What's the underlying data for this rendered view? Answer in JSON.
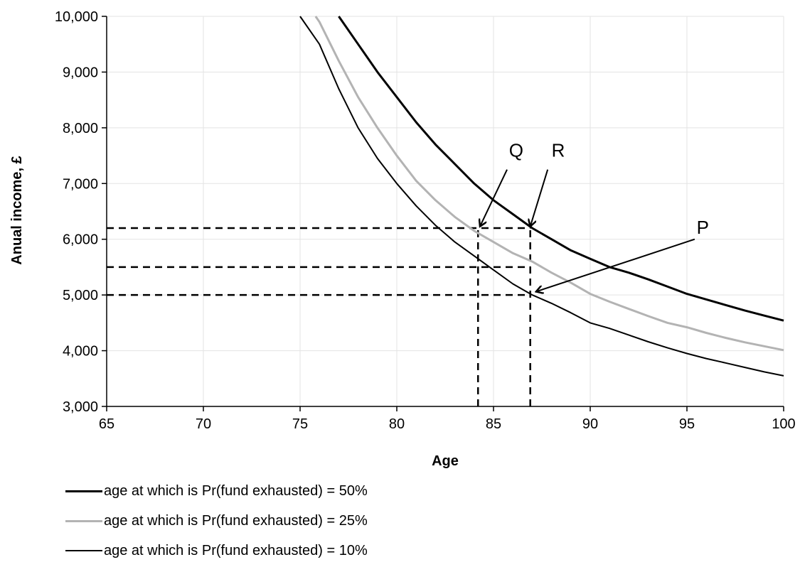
{
  "chart_data": {
    "type": "line",
    "xlabel": "Age",
    "ylabel": "Anual income, £",
    "xlim": [
      65,
      100
    ],
    "ylim": [
      3000,
      10000
    ],
    "xticks": [
      65,
      70,
      75,
      80,
      85,
      90,
      95,
      100
    ],
    "yticks": [
      3000,
      4000,
      5000,
      6000,
      7000,
      8000,
      9000,
      10000
    ],
    "xtick_labels": [
      "65",
      "70",
      "75",
      "80",
      "85",
      "90",
      "95",
      "100"
    ],
    "ytick_labels": [
      "3,000",
      "4,000",
      "5,000",
      "6,000",
      "7,000",
      "8,000",
      "9,000",
      "10,000"
    ],
    "grid": true,
    "legend_position": "bottom",
    "series": [
      {
        "name": "age at which is Pr(fund exhausted) = 50%",
        "color": "#000000",
        "x": [
          77,
          78,
          79,
          80,
          81,
          82,
          83,
          84,
          85,
          86,
          87,
          88,
          89,
          90,
          91,
          92,
          93,
          94,
          95,
          96,
          97,
          98,
          99,
          100
        ],
        "y": [
          10000,
          9500,
          9000,
          8550,
          8100,
          7700,
          7350,
          7000,
          6700,
          6450,
          6200,
          6000,
          5800,
          5650,
          5500,
          5400,
          5280,
          5150,
          5020,
          4920,
          4820,
          4720,
          4630,
          4540
        ]
      },
      {
        "name": "age at which is Pr(fund exhausted) = 25%",
        "color": "#b3b3b3",
        "x": [
          75.8,
          76,
          77,
          78,
          79,
          80,
          81,
          82,
          83,
          84,
          85,
          86,
          87,
          88,
          89,
          90,
          91,
          92,
          93,
          94,
          95,
          96,
          97,
          98,
          99,
          100
        ],
        "y": [
          10000,
          9900,
          9200,
          8550,
          8000,
          7500,
          7050,
          6700,
          6400,
          6150,
          5950,
          5750,
          5600,
          5400,
          5220,
          5020,
          4880,
          4750,
          4620,
          4500,
          4420,
          4320,
          4230,
          4150,
          4080,
          4010
        ]
      },
      {
        "name": "age at which is Pr(fund exhausted) = 10%",
        "color": "#000000",
        "x": [
          75,
          76,
          77,
          78,
          79,
          80,
          81,
          82,
          83,
          84,
          85,
          86,
          87,
          88,
          89,
          90,
          91,
          92,
          93,
          94,
          95,
          96,
          97,
          98,
          99,
          100
        ],
        "y": [
          10000,
          9500,
          8700,
          8000,
          7450,
          7000,
          6600,
          6250,
          5950,
          5700,
          5450,
          5200,
          5000,
          4850,
          4680,
          4500,
          4400,
          4280,
          4160,
          4050,
          3950,
          3860,
          3780,
          3700,
          3620,
          3550
        ]
      }
    ],
    "reference_lines": [
      {
        "y": 6200,
        "x_start": 65,
        "x_end": 86.9
      },
      {
        "y": 5500,
        "x_start": 65,
        "x_end": 86.9
      },
      {
        "y": 5000,
        "x_start": 65,
        "x_end": 86.9
      },
      {
        "x": 84.2,
        "y_start": 3000,
        "y_end": 6200
      },
      {
        "x": 86.9,
        "y_start": 3000,
        "y_end": 6200
      }
    ],
    "annotations": [
      {
        "label": "Q",
        "text_x": 85.8,
        "text_y": 7480,
        "arrow_from": [
          85.7,
          7250
        ],
        "arrow_to": [
          84.3,
          6230
        ]
      },
      {
        "label": "R",
        "text_x": 88.0,
        "text_y": 7480,
        "arrow_from": [
          87.8,
          7250
        ],
        "arrow_to": [
          86.9,
          6230
        ]
      },
      {
        "label": "P",
        "text_x": 95.5,
        "text_y": 6100,
        "arrow_from": [
          95.4,
          6000
        ],
        "arrow_to": [
          87.2,
          5060
        ]
      }
    ]
  }
}
